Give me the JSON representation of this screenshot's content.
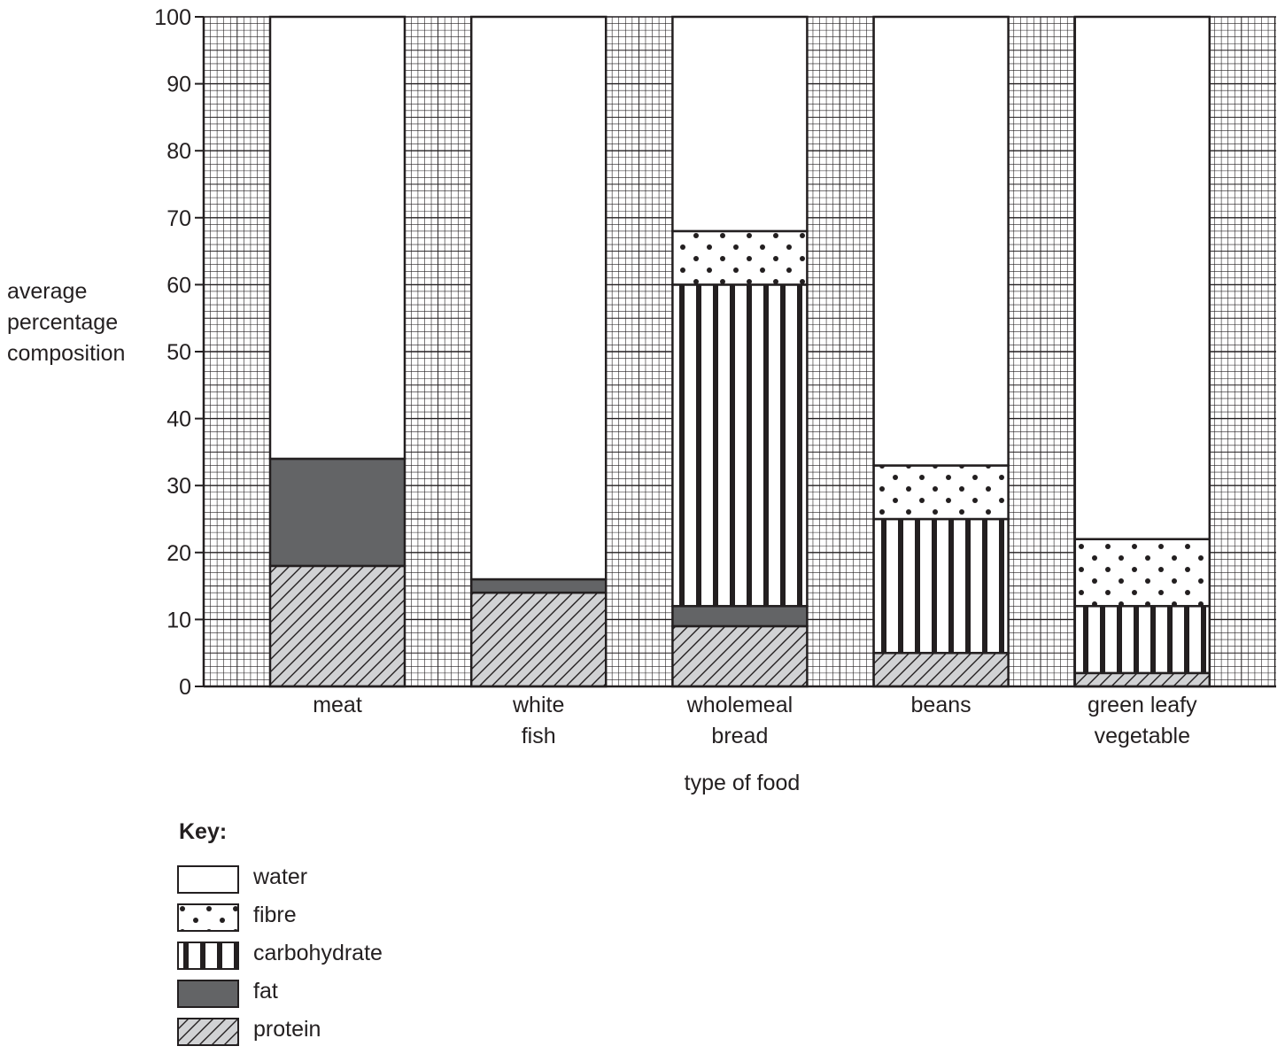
{
  "chart_data": {
    "type": "bar",
    "stacked": true,
    "categories": [
      [
        "meat"
      ],
      [
        "white",
        "fish"
      ],
      [
        "wholemeal",
        "bread"
      ],
      [
        "beans"
      ],
      [
        "green leafy",
        "vegetable"
      ]
    ],
    "series": [
      {
        "name": "protein",
        "pattern": "diagonal-hatch",
        "values": [
          18,
          14,
          9,
          5,
          2
        ]
      },
      {
        "name": "fat",
        "pattern": "solid-dark",
        "values": [
          16,
          2,
          3,
          0,
          0
        ]
      },
      {
        "name": "carbohydrate",
        "pattern": "vertical-stripes",
        "values": [
          0,
          0,
          48,
          20,
          10
        ]
      },
      {
        "name": "fibre",
        "pattern": "dots",
        "values": [
          0,
          0,
          8,
          8,
          10
        ]
      },
      {
        "name": "water",
        "pattern": "white",
        "values": [
          66,
          84,
          32,
          67,
          78
        ]
      }
    ],
    "xlabel": "type of food",
    "ylabel": [
      "average",
      "percentage",
      "composition"
    ],
    "ylim": [
      0,
      100
    ],
    "yticks": [
      0,
      10,
      20,
      30,
      40,
      50,
      60,
      70,
      80,
      90,
      100
    ],
    "grid": true,
    "legend": {
      "title": "Key:",
      "placement": "bottom-left",
      "order": [
        "water",
        "fibre",
        "carbohydrate",
        "fat",
        "protein"
      ]
    },
    "colors": {
      "fat": "#636466",
      "protein": "#d1d2d4",
      "ink": "#231f20"
    }
  }
}
